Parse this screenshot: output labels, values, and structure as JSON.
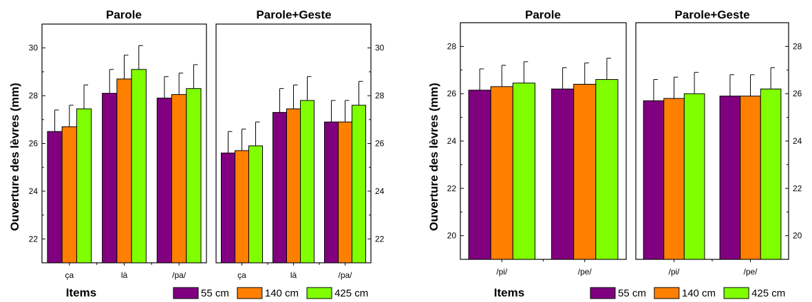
{
  "series_colors": [
    "#800080",
    "#ff8000",
    "#80ff00"
  ],
  "chart_data": [
    {
      "type": "bar",
      "ylabel": "Ouverture des lèvres (mm)",
      "xlabel": "Items",
      "ylim": [
        21,
        31
      ],
      "yticks": [
        22,
        24,
        26,
        28,
        30
      ],
      "legend": [
        "55 cm",
        "140 cm",
        "425 cm"
      ],
      "legend_placement": "bottom",
      "panels": [
        {
          "title": "Parole",
          "categories": [
            "ça",
            "là",
            "/pa/"
          ],
          "series": [
            {
              "name": "55 cm",
              "values": [
                26.5,
                28.1,
                27.9
              ],
              "errors": [
                0.9,
                1.0,
                0.9
              ]
            },
            {
              "name": "140 cm",
              "values": [
                26.7,
                28.7,
                28.05
              ],
              "errors": [
                0.9,
                1.0,
                0.9
              ]
            },
            {
              "name": "425 cm",
              "values": [
                27.45,
                29.1,
                28.3
              ],
              "errors": [
                1.0,
                1.0,
                1.0
              ]
            }
          ]
        },
        {
          "title": "Parole+Geste",
          "categories": [
            "ça",
            "là",
            "/pa/"
          ],
          "series": [
            {
              "name": "55 cm",
              "values": [
                25.6,
                27.3,
                26.9
              ],
              "errors": [
                0.9,
                1.0,
                0.9
              ]
            },
            {
              "name": "140 cm",
              "values": [
                25.7,
                27.45,
                26.9
              ],
              "errors": [
                0.9,
                1.0,
                0.9
              ]
            },
            {
              "name": "425 cm",
              "values": [
                25.9,
                27.8,
                27.6
              ],
              "errors": [
                1.0,
                1.0,
                1.0
              ]
            }
          ]
        }
      ]
    },
    {
      "type": "bar",
      "ylabel": "Ouverture des lèvres (mm)",
      "xlabel": "Items",
      "ylim": [
        19,
        29
      ],
      "yticks": [
        20,
        22,
        24,
        26,
        28
      ],
      "legend": [
        "55 cm",
        "140 cm",
        "425 cm"
      ],
      "legend_placement": "bottom",
      "panels": [
        {
          "title": "Parole",
          "categories": [
            "/pi/",
            "/pe/"
          ],
          "series": [
            {
              "name": "55 cm",
              "values": [
                26.15,
                26.2
              ],
              "errors": [
                0.9,
                0.9
              ]
            },
            {
              "name": "140 cm",
              "values": [
                26.3,
                26.4
              ],
              "errors": [
                0.9,
                0.9
              ]
            },
            {
              "name": "425 cm",
              "values": [
                26.45,
                26.6
              ],
              "errors": [
                0.9,
                0.9
              ]
            }
          ]
        },
        {
          "title": "Parole+Geste",
          "categories": [
            "/pi/",
            "/pe/"
          ],
          "series": [
            {
              "name": "55 cm",
              "values": [
                25.7,
                25.9
              ],
              "errors": [
                0.9,
                0.9
              ]
            },
            {
              "name": "140 cm",
              "values": [
                25.8,
                25.9
              ],
              "errors": [
                0.9,
                0.9
              ]
            },
            {
              "name": "425 cm",
              "values": [
                26.0,
                26.2
              ],
              "errors": [
                0.9,
                0.9
              ]
            }
          ]
        }
      ]
    }
  ]
}
